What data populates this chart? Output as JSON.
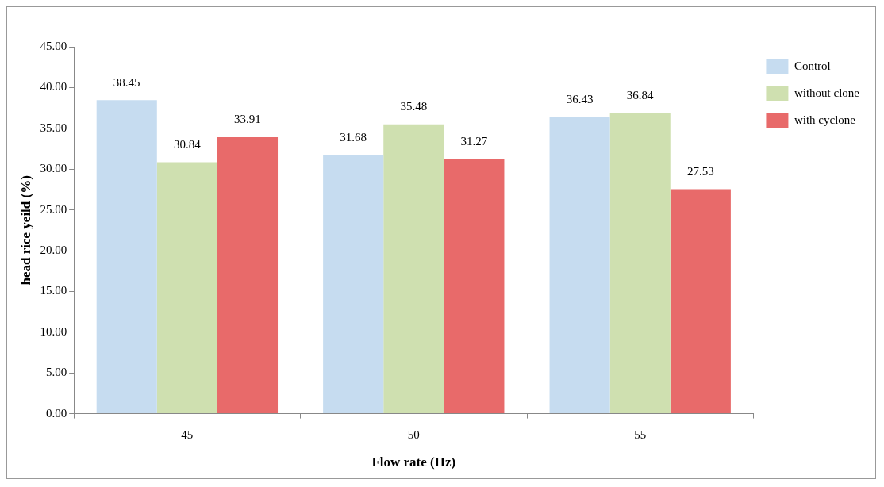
{
  "chart_data": {
    "type": "bar",
    "xlabel": "Flow rate (Hz)",
    "ylabel": "head rice yeild (%)",
    "categories": [
      "45",
      "50",
      "55"
    ],
    "series": [
      {
        "name": "Control",
        "color": "#c6dcf0",
        "values": [
          38.45,
          31.68,
          36.43
        ]
      },
      {
        "name": "without clone",
        "color": "#cfe0b0",
        "values": [
          30.84,
          35.48,
          36.84
        ]
      },
      {
        "name": "with cyclone",
        "color": "#e86a6a",
        "values": [
          33.91,
          31.27,
          27.53
        ]
      }
    ],
    "ylim": [
      0,
      45
    ],
    "yticks": [
      {
        "value": 0,
        "label": "0.00"
      },
      {
        "value": 5,
        "label": "5.00"
      },
      {
        "value": 10,
        "label": "10.00"
      },
      {
        "value": 15,
        "label": "15.00"
      },
      {
        "value": 20,
        "label": "20.00"
      },
      {
        "value": 25,
        "label": "25.00"
      },
      {
        "value": 30,
        "label": "30.00"
      },
      {
        "value": 35,
        "label": "35.00"
      },
      {
        "value": 40,
        "label": "40.00"
      },
      {
        "value": 45,
        "label": "45.00"
      }
    ],
    "data_labels": true,
    "legend": "top right",
    "grid": false
  }
}
